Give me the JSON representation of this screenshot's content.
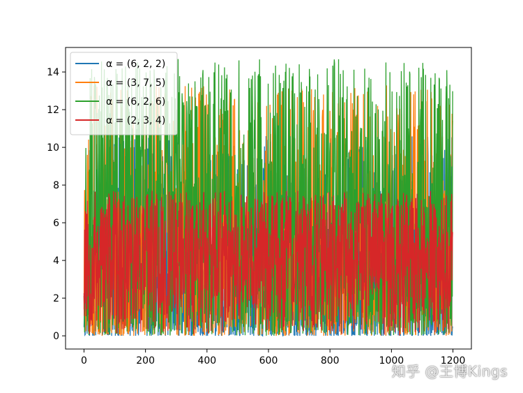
{
  "chart_data": {
    "type": "line",
    "title": "",
    "xlabel": "",
    "ylabel": "",
    "xlim": [
      -60,
      1260
    ],
    "ylim": [
      -0.7,
      15.3
    ],
    "xticks": [
      0,
      200,
      400,
      600,
      800,
      1000,
      1200
    ],
    "yticks": [
      0,
      2,
      4,
      6,
      8,
      10,
      12,
      14
    ],
    "grid": false,
    "legend_position": "upper-left",
    "n_points": 1200,
    "series": [
      {
        "name": "α = (6, 2, 2)",
        "color": "#1f77b4",
        "approx_max": 10.6
      },
      {
        "name": "α = (3, 7, 5)",
        "color": "#ff7f0e",
        "approx_max": 13.3
      },
      {
        "name": "α = (6, 2, 6)",
        "color": "#2ca02c",
        "approx_max": 14.7
      },
      {
        "name": "α = (2, 3, 4)",
        "color": "#d62728",
        "approx_max": 7.7
      }
    ]
  },
  "watermark": "知乎 @王博Kings"
}
